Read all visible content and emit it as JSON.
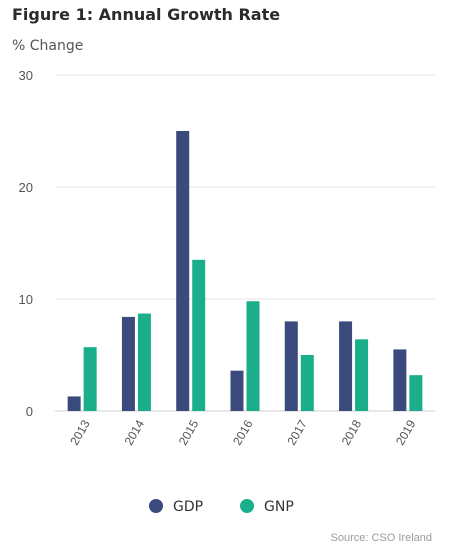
{
  "chart_data": {
    "type": "bar",
    "title": "Figure 1: Annual Growth Rate",
    "ylabel": "% Change",
    "xlabel": "",
    "categories": [
      "2013",
      "2014",
      "2015",
      "2016",
      "2017",
      "2018",
      "2019"
    ],
    "series": [
      {
        "name": "GDP",
        "color": "#3a4a7d",
        "values": [
          1.3,
          8.4,
          25.0,
          3.6,
          8.0,
          8.0,
          5.5
        ]
      },
      {
        "name": "GNP",
        "color": "#1aae8a",
        "values": [
          5.7,
          8.7,
          13.5,
          9.8,
          5.0,
          6.4,
          3.2
        ]
      }
    ],
    "ylim": [
      0,
      30
    ],
    "yticks": [
      0,
      10,
      20,
      30
    ],
    "grid": true,
    "legend": "bottom-center",
    "source": "Source: CSO Ireland"
  }
}
